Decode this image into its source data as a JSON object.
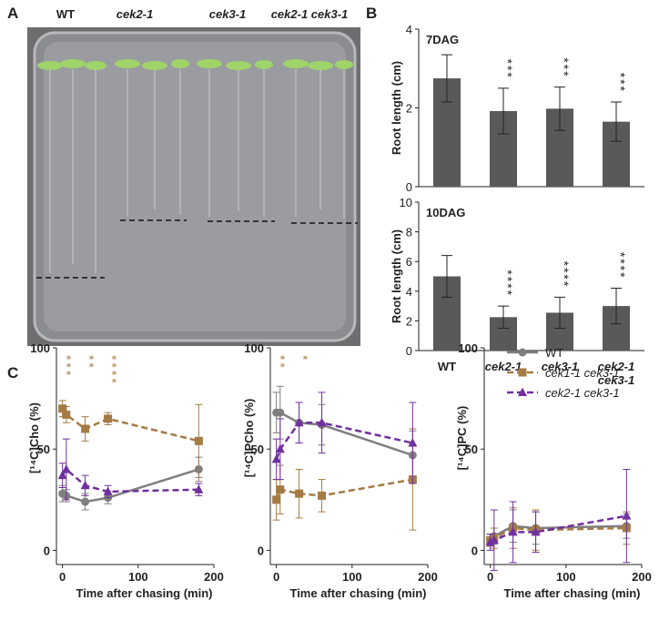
{
  "panel_labels": [
    "A",
    "B",
    "C"
  ],
  "photo": {
    "labels": [
      "WT",
      "cek2-1",
      "cek3-1",
      "cek2-1 cek3-1"
    ]
  },
  "chart_data": [
    {
      "type": "bar",
      "title": "7DAG",
      "y_label": "Root length (cm)",
      "values": [
        2.75,
        1.92,
        1.98,
        1.65
      ],
      "errors": [
        0.6,
        0.58,
        0.55,
        0.5
      ],
      "significance": [
        null,
        "***",
        "***",
        "***"
      ],
      "color": "#595959",
      "ylim": [
        0,
        4
      ],
      "yticks": [
        0,
        2,
        4
      ]
    },
    {
      "type": "bar",
      "title": "10DAG",
      "y_label": "Root length (cm)",
      "categories": [
        "WT",
        "cek2-1",
        "cek3-1",
        "cek2-1 cek3-1"
      ],
      "values": [
        5.0,
        2.25,
        2.55,
        3.0
      ],
      "errors": [
        1.4,
        0.75,
        1.05,
        1.2
      ],
      "significance": [
        null,
        "****",
        "****",
        "****"
      ],
      "color": "#595959",
      "ylim": [
        0,
        10
      ],
      "yticks": [
        0,
        2,
        4,
        6,
        8,
        10
      ]
    },
    {
      "type": "line",
      "y_label": "[¹⁴C]Cho (%)",
      "x_label": "Time after chasing (min)",
      "x": [
        0,
        5,
        30,
        60,
        180
      ],
      "xlim": [
        -8,
        200
      ],
      "xticks": [
        0,
        100,
        200
      ],
      "ylim": [
        -7,
        100
      ],
      "yticks": [
        0,
        50,
        100
      ],
      "annotations": [
        {
          "x": 0,
          "text": "***"
        },
        {
          "x": 30,
          "text": "**"
        },
        {
          "x": 60,
          "text": "****"
        }
      ],
      "annotation_color": "#a57b45",
      "series": [
        {
          "name": "WT",
          "color": "#7f7f7f",
          "marker": "circle",
          "dash": false,
          "values": [
            28,
            27,
            24,
            26,
            40
          ],
          "errors": [
            4,
            3,
            4,
            3,
            6
          ]
        },
        {
          "name": "cek1-1 cek3-1",
          "color": "#a57b45",
          "marker": "square",
          "dash": true,
          "values": [
            70,
            67,
            60,
            65,
            54
          ],
          "errors": [
            4,
            4,
            6,
            3,
            18
          ]
        },
        {
          "name": "cek2-1 cek3-1",
          "color": "#7030a0",
          "marker": "triangle",
          "dash": true,
          "values": [
            37,
            40,
            32,
            29,
            30
          ],
          "errors": [
            6,
            15,
            5,
            3,
            3
          ]
        }
      ]
    },
    {
      "type": "line",
      "y_label": "[¹⁴C]PCho (%)",
      "x_label": "Time after chasing (min)",
      "x": [
        0,
        5,
        30,
        60,
        180
      ],
      "xlim": [
        -8,
        200
      ],
      "xticks": [
        0,
        100,
        200
      ],
      "ylim": [
        -7,
        100
      ],
      "yticks": [
        0,
        50,
        100
      ],
      "annotations": [
        {
          "x": 0,
          "text": "**"
        },
        {
          "x": 30,
          "text": "*"
        }
      ],
      "annotation_color": "#a57b45",
      "series": [
        {
          "name": "WT",
          "color": "#7f7f7f",
          "marker": "circle",
          "dash": false,
          "values": [
            68,
            68,
            63,
            62,
            47
          ],
          "errors": [
            10,
            13,
            10,
            10,
            12
          ]
        },
        {
          "name": "cek1-1 cek3-1",
          "color": "#a57b45",
          "marker": "square",
          "dash": true,
          "values": [
            25,
            30,
            28,
            27,
            35
          ],
          "errors": [
            10,
            12,
            12,
            8,
            25
          ]
        },
        {
          "name": "cek2-1 cek3-1",
          "color": "#7030a0",
          "marker": "triangle",
          "dash": true,
          "values": [
            45,
            50,
            63,
            63,
            53
          ],
          "errors": [
            10,
            15,
            10,
            15,
            20
          ]
        }
      ]
    },
    {
      "type": "line",
      "y_label": "[¹⁴C]PC (%)",
      "x_label": "Time after chasing (min)",
      "x": [
        0,
        5,
        30,
        60,
        180
      ],
      "xlim": [
        -8,
        200
      ],
      "xticks": [
        0,
        100,
        200
      ],
      "ylim": [
        -7,
        100
      ],
      "yticks": [
        0,
        50,
        100
      ],
      "legend": "upper right",
      "series": [
        {
          "name": "WT",
          "color": "#7f7f7f",
          "marker": "circle",
          "dash": false,
          "values": [
            5,
            7,
            12,
            11,
            12
          ],
          "errors": [
            3,
            4,
            8,
            8,
            6
          ]
        },
        {
          "name": "cek1-1 cek3-1",
          "color": "#a57b45",
          "marker": "square",
          "dash": true,
          "values": [
            5,
            6,
            11,
            10,
            11
          ],
          "errors": [
            3,
            5,
            10,
            10,
            8
          ]
        },
        {
          "name": "cek2-1 cek3-1",
          "color": "#7030a0",
          "marker": "triangle",
          "dash": true,
          "values": [
            4,
            5,
            9,
            9,
            17
          ],
          "errors": [
            4,
            15,
            15,
            10,
            23
          ]
        }
      ]
    }
  ]
}
